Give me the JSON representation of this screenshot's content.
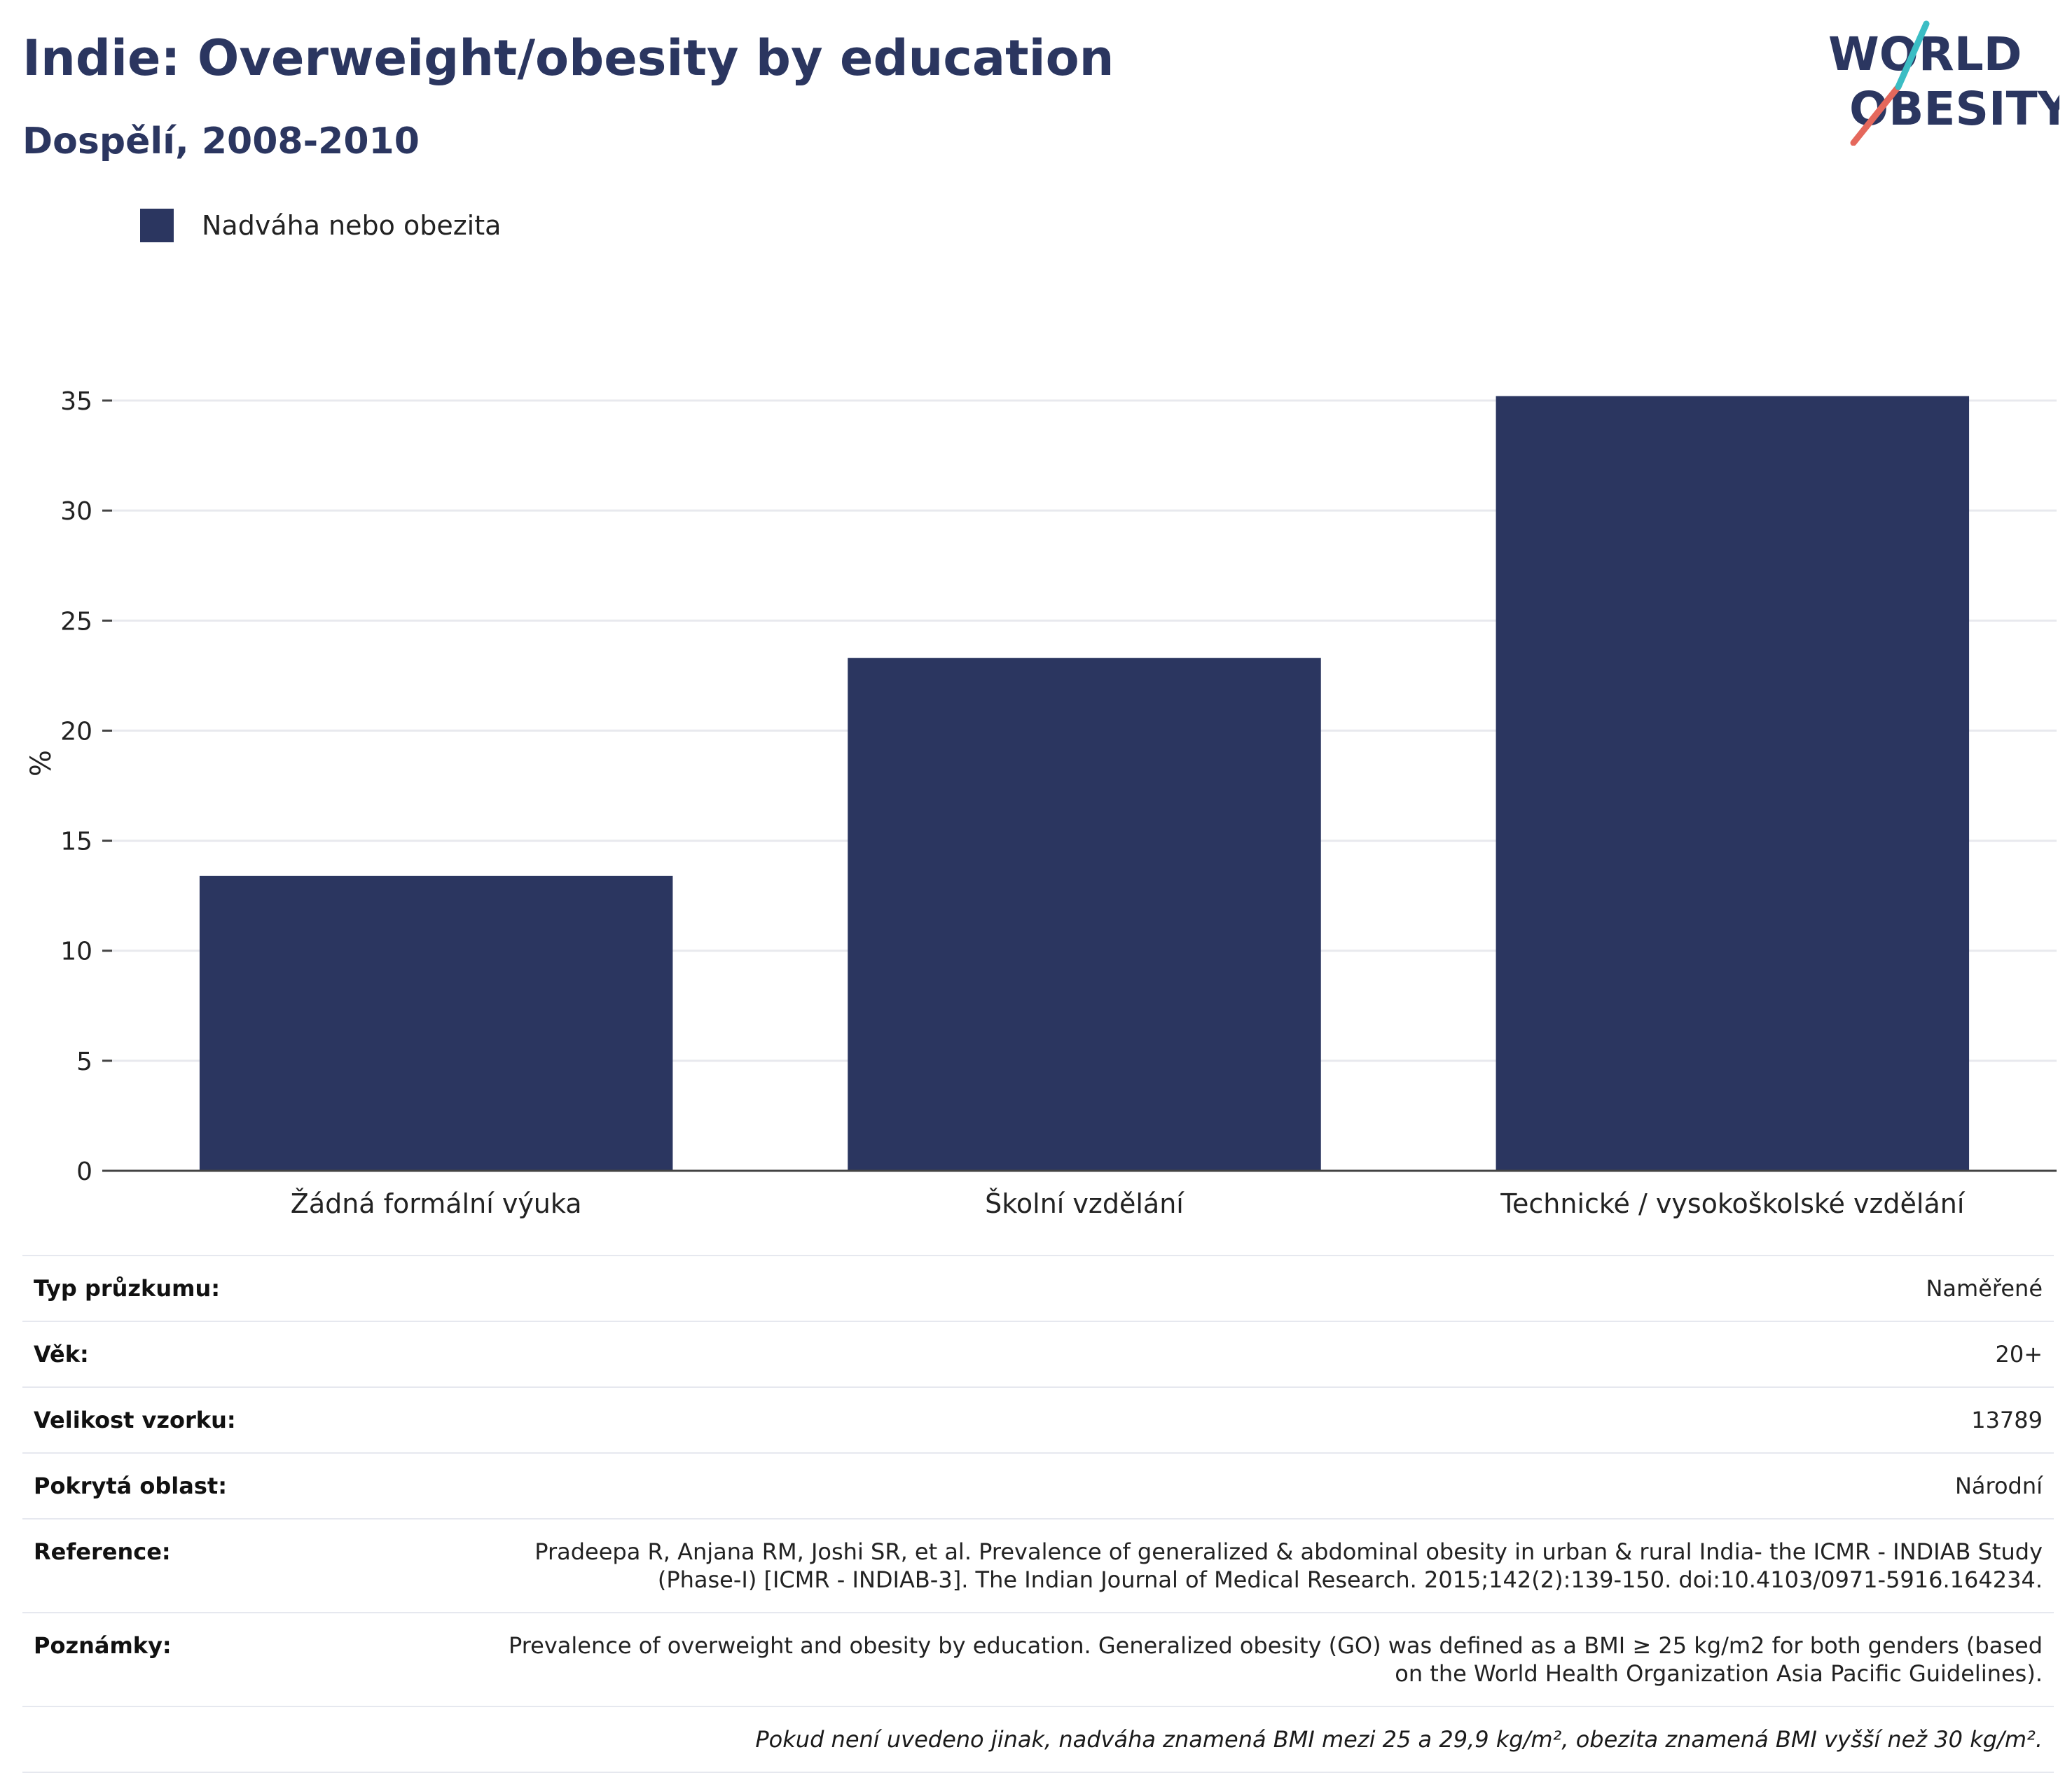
{
  "header": {
    "title": "Indie: Overweight/obesity by education",
    "subtitle": "Dospělí, 2008-2010"
  },
  "logo": {
    "line1": "WORLD",
    "line2": "OBESITY"
  },
  "legend": {
    "label": "Nadváha nebo obezita",
    "color": "#2b3660"
  },
  "chart_data": {
    "type": "bar",
    "categories": [
      "Žádná formální výuka",
      "Školní vzdělání",
      "Technické / vysokoškolské vzdělání"
    ],
    "series": [
      {
        "name": "Nadváha nebo obezita",
        "values": [
          13.4,
          23.3,
          35.2
        ],
        "color": "#2b3660"
      }
    ],
    "ylabel": "%",
    "ylim": [
      0,
      35
    ],
    "yticks": [
      "0",
      "5",
      "10",
      "15",
      "20",
      "25",
      "30",
      "35"
    ],
    "grid": true
  },
  "info": {
    "rows": [
      {
        "key": "Typ průzkumu:",
        "value": "Naměřené"
      },
      {
        "key": "Věk:",
        "value": "20+"
      },
      {
        "key": "Velikost vzorku:",
        "value": "13789"
      },
      {
        "key": "Pokrytá oblast:",
        "value": "Národní"
      },
      {
        "key": "Reference:",
        "value_lines": [
          "Pradeepa R, Anjana RM, Joshi SR, et al. Prevalence of generalized & abdominal obesity in urban & rural India- the ICMR - INDIAB Study",
          "(Phase-I) [ICMR - INDIAB-3]. The Indian Journal of Medical Research. 2015;142(2):139-150. doi:10.4103/0971-5916.164234."
        ]
      },
      {
        "key": "Poznámky:",
        "value_lines": [
          "Prevalence of overweight and obesity by education. Generalized obesity (GO) was defined as a BMI ≥ 25 kg/m2 for both genders (based",
          "on the World Health Organization Asia Pacific Guidelines)."
        ]
      }
    ],
    "footnote": "Pokud není uvedeno jinak, nadváha znamená BMI mezi 25 a 29,9 kg/m², obezita znamená BMI vyšší než 30 kg/m²."
  }
}
